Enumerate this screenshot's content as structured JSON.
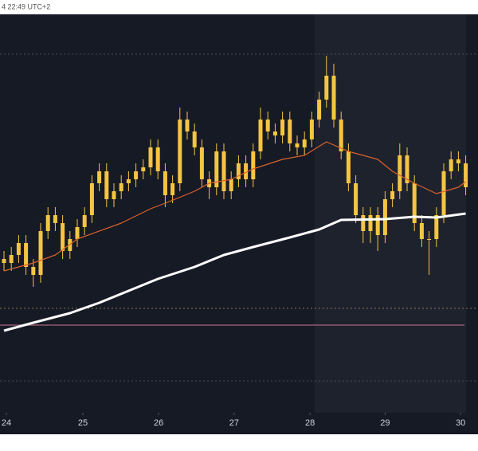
{
  "chart_data": {
    "type": "candlestick",
    "header": "4 22:49 UTC+2",
    "candle_color": "#f5c542",
    "open": [
      175,
      170,
      180,
      195,
      165,
      155,
      210,
      230,
      220,
      185,
      200,
      215,
      230,
      270,
      285,
      250,
      260,
      270,
      275,
      285,
      290,
      315,
      285,
      255,
      270,
      350,
      335,
      315,
      275,
      265,
      310,
      260,
      275,
      295,
      275,
      310,
      350,
      335,
      330,
      350,
      320,
      315,
      325,
      350,
      375,
      405,
      350,
      310,
      270,
      230,
      210,
      230,
      205,
      250,
      260,
      305,
      270,
      220,
      200,
      200,
      230,
      285,
      300,
      295
    ],
    "high": [
      185,
      190,
      205,
      205,
      175,
      220,
      240,
      240,
      230,
      210,
      225,
      240,
      280,
      295,
      295,
      270,
      280,
      285,
      295,
      300,
      325,
      325,
      295,
      280,
      365,
      360,
      345,
      325,
      285,
      320,
      320,
      285,
      305,
      305,
      320,
      365,
      360,
      345,
      360,
      360,
      330,
      335,
      360,
      385,
      430,
      420,
      360,
      320,
      280,
      240,
      240,
      240,
      260,
      270,
      320,
      315,
      280,
      230,
      210,
      240,
      295,
      310,
      310,
      305
    ],
    "low": [
      160,
      160,
      170,
      155,
      140,
      145,
      200,
      210,
      175,
      175,
      190,
      205,
      220,
      260,
      240,
      240,
      250,
      260,
      265,
      275,
      280,
      275,
      240,
      245,
      260,
      325,
      305,
      265,
      250,
      255,
      250,
      250,
      265,
      265,
      265,
      300,
      325,
      320,
      320,
      310,
      305,
      305,
      315,
      340,
      365,
      340,
      300,
      260,
      220,
      195,
      195,
      185,
      195,
      240,
      250,
      260,
      210,
      190,
      155,
      190,
      220,
      275,
      285,
      255
    ],
    "close": [
      170,
      180,
      195,
      165,
      155,
      210,
      230,
      220,
      185,
      200,
      215,
      230,
      270,
      285,
      250,
      260,
      270,
      275,
      285,
      290,
      315,
      285,
      255,
      270,
      350,
      335,
      315,
      275,
      265,
      310,
      260,
      275,
      295,
      275,
      310,
      350,
      335,
      330,
      350,
      320,
      315,
      325,
      350,
      375,
      405,
      350,
      310,
      270,
      230,
      210,
      230,
      205,
      250,
      260,
      305,
      270,
      220,
      200,
      200,
      230,
      285,
      300,
      295,
      265
    ],
    "series": [
      {
        "color": "#d9622b",
        "width": 1.2,
        "x": [
          0,
          4,
          7,
          10,
          16,
          20,
          22,
          26,
          28,
          31,
          34,
          38,
          41,
          44,
          47,
          51,
          53,
          56,
          59,
          62,
          63
        ],
        "values": [
          160,
          170,
          180,
          200,
          220,
          238,
          245,
          260,
          270,
          275,
          288,
          300,
          305,
          322,
          310,
          300,
          285,
          270,
          257,
          265,
          272
        ]
      },
      {
        "color": "#ffffff",
        "width": 3,
        "x": [
          0,
          4,
          9,
          13,
          17,
          21,
          26,
          30,
          34,
          39,
          43,
          46,
          52,
          56,
          59,
          63
        ],
        "values": [
          85,
          95,
          107,
          120,
          135,
          150,
          165,
          180,
          190,
          202,
          212,
          224,
          225,
          228,
          227,
          232
        ]
      }
    ],
    "xticks": [
      {
        "value": 0.33,
        "label": "24"
      },
      {
        "value": 10.76,
        "label": "25"
      },
      {
        "value": 21.1,
        "label": "26"
      },
      {
        "value": 31.4,
        "label": "27"
      },
      {
        "value": 41.75,
        "label": "28"
      },
      {
        "value": 52,
        "label": "29"
      },
      {
        "value": 62.3,
        "label": "30"
      }
    ]
  }
}
